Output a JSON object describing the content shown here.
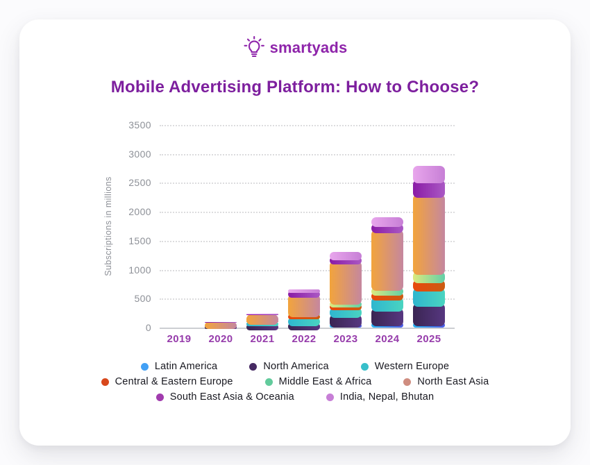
{
  "page": {
    "background": "#fbfbfd",
    "card_background": "#ffffff"
  },
  "logo": {
    "text": "smartyads",
    "color": "#8e24aa"
  },
  "title": {
    "text": "Mobile Advertising Platform: How to Choose?",
    "color": "#7d1f9e"
  },
  "axis": {
    "year_label_color": "#963cab",
    "tick_label_color": "#8d9097"
  },
  "chart_data": {
    "type": "bar",
    "stacked": true,
    "title": "Mobile Advertising Platform: How to Choose?",
    "xlabel": "",
    "ylabel": "Subscriptions in millions",
    "ylim": [
      0,
      3500
    ],
    "yticks": [
      0,
      500,
      1000,
      1500,
      2000,
      2500,
      3000,
      3500
    ],
    "grid": "horizontal-dotted",
    "legend_position": "bottom",
    "categories": [
      "2019",
      "2020",
      "2021",
      "2022",
      "2023",
      "2024",
      "2025"
    ],
    "series": [
      {
        "name": "Latin America",
        "color_start": "#27b4f2",
        "color_end": "#4b5ae8",
        "dot_color": "#42a0f5",
        "values": [
          0,
          2,
          5,
          15,
          55,
          80,
          85
        ]
      },
      {
        "name": "North America",
        "color_start": "#3a2553",
        "color_end": "#573780",
        "dot_color": "#462a63",
        "values": [
          0,
          20,
          55,
          65,
          175,
          250,
          330
        ]
      },
      {
        "name": "Western Europe",
        "color_start": "#2fb6cf",
        "color_end": "#4ad4c0",
        "dot_color": "#38bfca",
        "values": [
          0,
          8,
          40,
          105,
          120,
          200,
          265
        ]
      },
      {
        "name": "Central & Eastern Europe",
        "color_start": "#e8480c",
        "color_end": "#cc5c12",
        "dot_color": "#d8481c",
        "values": [
          0,
          3,
          8,
          45,
          55,
          85,
          150
        ]
      },
      {
        "name": "Middle East & Africa",
        "color_start": "#dce97e",
        "color_end": "#62d0a8",
        "dot_color": "#62cb9c",
        "values": [
          0,
          2,
          5,
          15,
          55,
          80,
          140
        ]
      },
      {
        "name": "North East Asia",
        "color_start": "#f2a43c",
        "color_end": "#c5879f",
        "dot_color": "#cf8d80",
        "values": [
          0,
          55,
          110,
          330,
          690,
          990,
          1330
        ]
      },
      {
        "name": "South East Asia & Oceania",
        "color_start": "#8a1ca6",
        "color_end": "#aa58c4",
        "dot_color": "#a13cae",
        "values": [
          0,
          5,
          10,
          55,
          70,
          110,
          250
        ]
      },
      {
        "name": "India, Nepal, Bhutan",
        "color_start": "#e8a6ec",
        "color_end": "#c77fd6",
        "dot_color": "#c77fd6",
        "values": [
          0,
          3,
          5,
          25,
          85,
          115,
          240
        ]
      }
    ]
  },
  "legend": {
    "rows": [
      [
        0,
        1,
        2
      ],
      [
        3,
        4,
        5
      ],
      [
        6,
        7
      ]
    ]
  }
}
